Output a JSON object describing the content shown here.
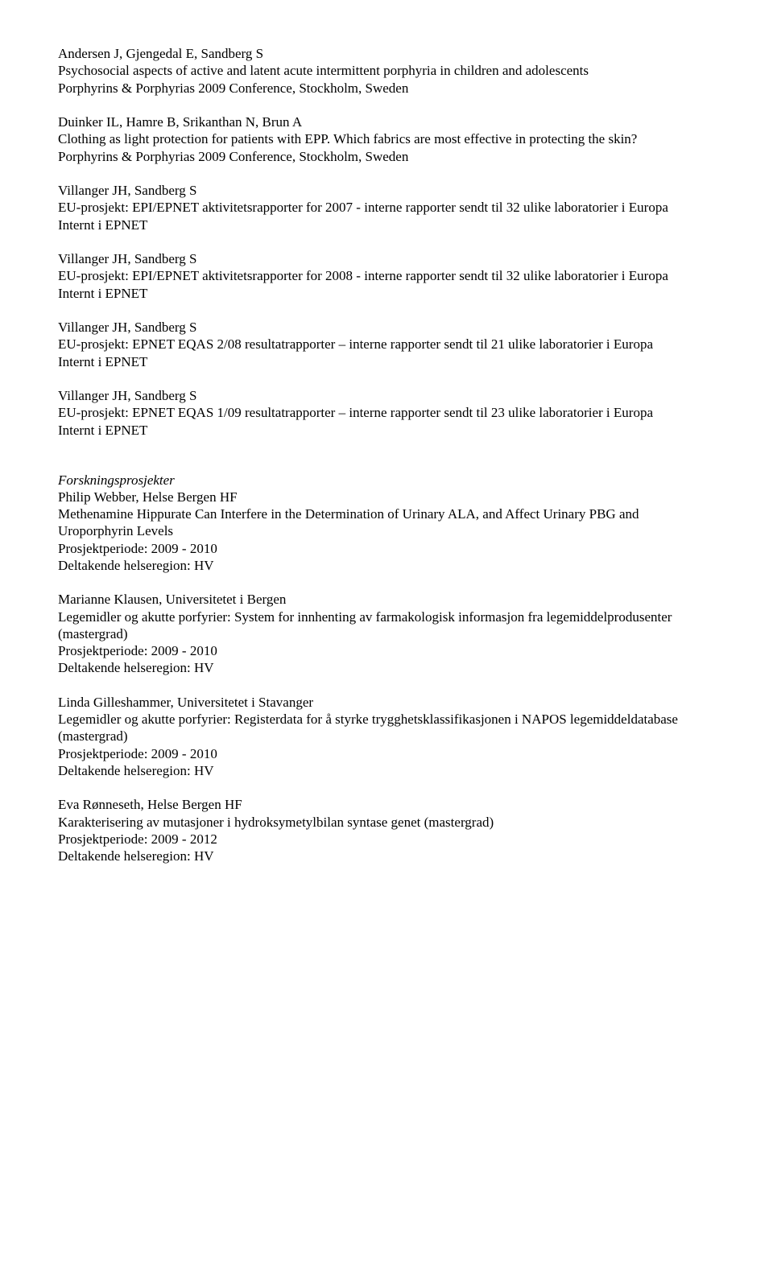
{
  "entries": [
    {
      "authors": "Andersen J, Gjengedal E, Sandberg S",
      "title": "Psychosocial aspects of active and latent acute intermittent porphyria in children and adolescents",
      "venue": "Porphyrins & Porphyrias 2009 Conference, Stockholm, Sweden"
    },
    {
      "authors": "Duinker IL, Hamre B, Srikanthan N, Brun A",
      "title": "Clothing as light protection for patients with EPP. Which fabrics are most effective in protecting the skin?",
      "venue": "Porphyrins & Porphyrias 2009 Conference, Stockholm, Sweden"
    },
    {
      "authors": "Villanger JH, Sandberg S",
      "title": "EU-prosjekt: EPI/EPNET aktivitetsrapporter for 2007 - interne rapporter sendt til 32 ulike laboratorier i Europa",
      "venue": "Internt i EPNET"
    },
    {
      "authors": "Villanger JH, Sandberg S",
      "title": "EU-prosjekt: EPI/EPNET aktivitetsrapporter for 2008 - interne rapporter sendt til 32 ulike laboratorier i Europa",
      "venue": "Internt i EPNET"
    },
    {
      "authors": "Villanger JH, Sandberg S",
      "title": "EU-prosjekt: EPNET EQAS 2/08 resultatrapporter – interne rapporter sendt til 21 ulike laboratorier i Europa",
      "venue": "Internt i EPNET"
    },
    {
      "authors": "Villanger JH, Sandberg S",
      "title": "EU-prosjekt: EPNET EQAS 1/09 resultatrapporter – interne rapporter sendt til 23 ulike laboratorier i Europa",
      "venue": "Internt i EPNET"
    }
  ],
  "projects_heading": "Forskningsprosjekter",
  "projects": [
    {
      "owner": "Philip Webber, Helse Bergen HF",
      "title": "Methenamine Hippurate Can Interfere in the Determination of Urinary ALA, and Affect Urinary PBG and Uroporphyrin Levels",
      "period": "Prosjektperiode: 2009 - 2010",
      "region": "Deltakende helseregion: HV"
    },
    {
      "owner": "Marianne Klausen, Universitetet i Bergen",
      "title": "Legemidler og akutte porfyrier: System for innhenting av farmakologisk informasjon fra legemiddelprodusenter (mastergrad)",
      "period": "Prosjektperiode: 2009 - 2010",
      "region": "Deltakende helseregion: HV"
    },
    {
      "owner": "Linda Gilleshammer, Universitetet i Stavanger",
      "title": "Legemidler og akutte porfyrier: Registerdata for å styrke trygghetsklassifikasjonen i NAPOS legemiddeldatabase (mastergrad)",
      "period": "Prosjektperiode: 2009 - 2010",
      "region": "Deltakende helseregion: HV"
    },
    {
      "owner": "Eva Rønneseth, Helse Bergen HF",
      "title": "Karakterisering av mutasjoner i hydroksymetylbilan syntase genet (mastergrad)",
      "period": "Prosjektperiode: 2009 - 2012",
      "region": "Deltakende helseregion: HV"
    }
  ]
}
